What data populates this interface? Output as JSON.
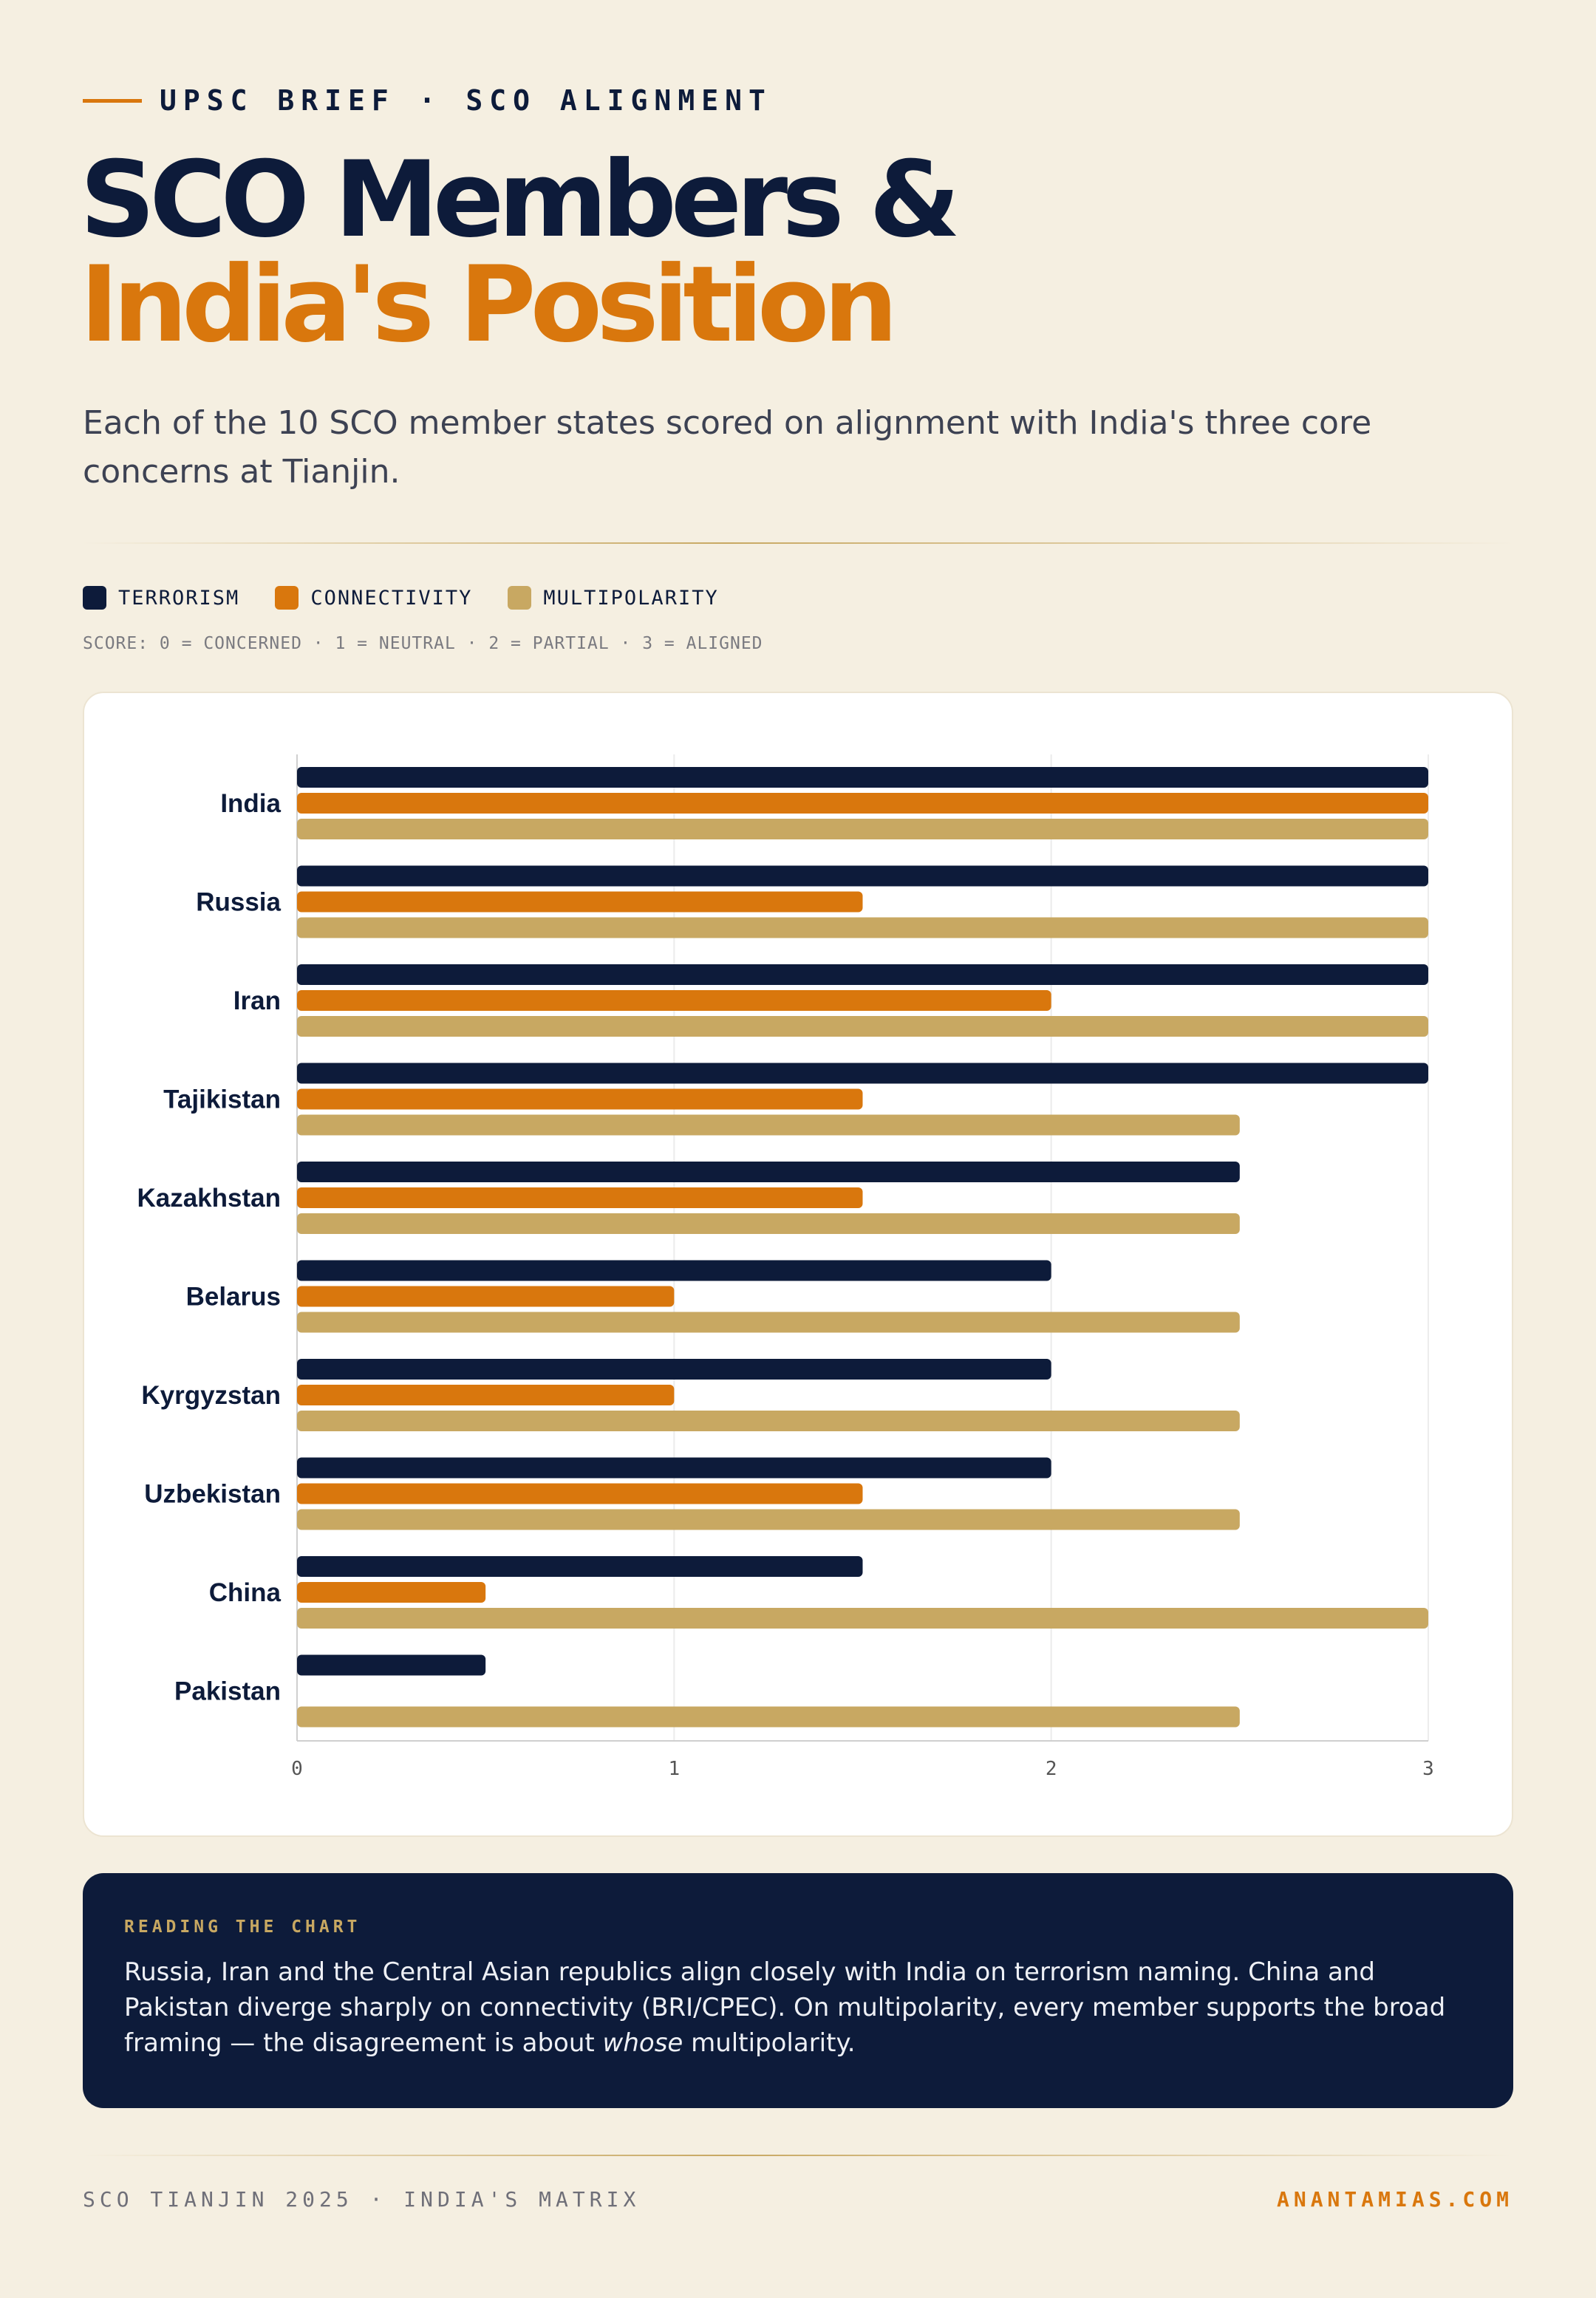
{
  "header": {
    "eyebrow": "UPSC BRIEF · SCO ALIGNMENT",
    "title_line1": "SCO Members &",
    "title_line2": "India's Position",
    "subtitle": "Each of the 10 SCO member states scored on alignment with India's three core concerns at Tianjin."
  },
  "legend": {
    "items": [
      {
        "label": "TERRORISM",
        "color": "#0d1b3a"
      },
      {
        "label": "CONNECTIVITY",
        "color": "#d9770d"
      },
      {
        "label": "MULTIPOLARITY",
        "color": "#c8a862"
      }
    ],
    "scale_note": "SCORE: 0 = CONCERNED · 1 = NEUTRAL · 2 = PARTIAL · 3 = ALIGNED"
  },
  "chart_data": {
    "type": "bar",
    "orientation": "horizontal",
    "categories": [
      "India",
      "Russia",
      "Iran",
      "Tajikistan",
      "Kazakhstan",
      "Belarus",
      "Kyrgyzstan",
      "Uzbekistan",
      "China",
      "Pakistan"
    ],
    "series": [
      {
        "name": "TERRORISM",
        "color": "#0d1b3a",
        "values": [
          3,
          3,
          3,
          3,
          2.5,
          2,
          2,
          2,
          1.5,
          0.5
        ]
      },
      {
        "name": "CONNECTIVITY",
        "color": "#d9770d",
        "values": [
          3,
          1.5,
          2,
          1.5,
          1.5,
          1,
          1,
          1.5,
          0.5,
          0
        ]
      },
      {
        "name": "MULTIPOLARITY",
        "color": "#c8a862",
        "values": [
          3,
          3,
          3,
          2.5,
          2.5,
          2.5,
          2.5,
          2.5,
          3,
          2.5
        ]
      }
    ],
    "xlim": [
      0,
      3
    ],
    "xticks": [
      0,
      1,
      2,
      3
    ],
    "grid": true,
    "legend_position": "top-left"
  },
  "note": {
    "label": "READING THE CHART",
    "text_before": "Russia, Iran and the Central Asian republics align closely with India on terrorism naming. China and Pakistan diverge sharply on connectivity (BRI/CPEC). On multipolarity, every member supports the broad framing — the disagreement is about ",
    "text_emphasis": "whose",
    "text_after": " multipolarity."
  },
  "footer": {
    "left": "SCO TIANJIN 2025 · INDIA'S MATRIX",
    "right": "ANANTAMIAS.COM"
  }
}
